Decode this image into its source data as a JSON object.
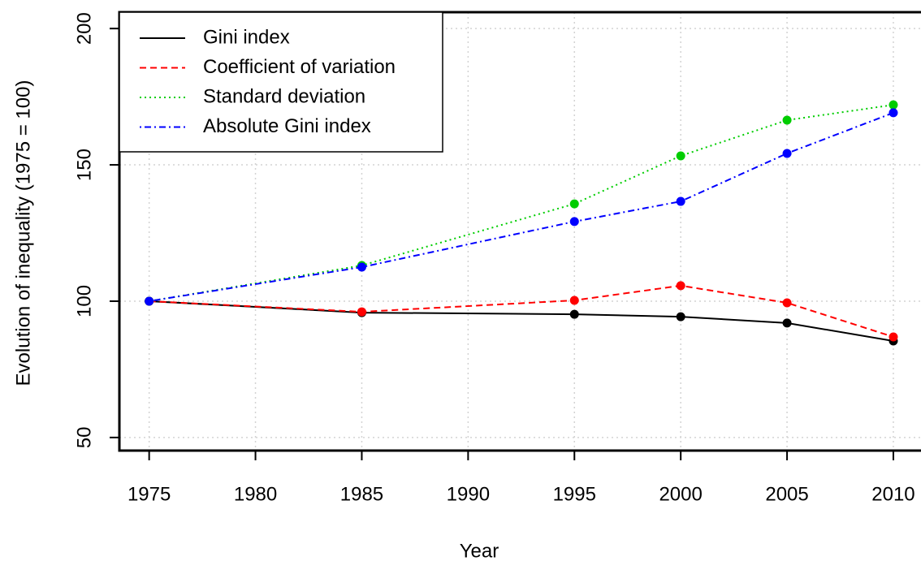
{
  "chart_data": {
    "type": "line",
    "x": [
      1975,
      1985,
      1995,
      2000,
      2005,
      2010
    ],
    "series": [
      {
        "name": "Gini index",
        "color": "#000000",
        "linestyle": "solid",
        "values": [
          100,
          95.8,
          95.2,
          94.3,
          92.0,
          85.4
        ]
      },
      {
        "name": "Coefficient of variation",
        "color": "#ff0000",
        "linestyle": "dashed",
        "values": [
          100,
          96.1,
          100.3,
          105.7,
          99.4,
          86.9
        ]
      },
      {
        "name": "Standard deviation",
        "color": "#00cd00",
        "linestyle": "dotted",
        "values": [
          100,
          113.1,
          135.7,
          153.3,
          166.4,
          172.0
        ]
      },
      {
        "name": "Absolute Gini index",
        "color": "#0000ff",
        "linestyle": "dotdash",
        "values": [
          100,
          112.5,
          129.2,
          136.6,
          154.2,
          169.1
        ]
      }
    ],
    "xlabel": "Year",
    "ylabel": "Evolution of inequality (1975 = 100)",
    "xlim": [
      1973.6,
      2011.3
    ],
    "ylim": [
      45.2,
      206.0
    ],
    "xticks": [
      1975,
      1980,
      1985,
      1990,
      1995,
      2000,
      2005,
      2010
    ],
    "yticks": [
      50,
      100,
      150,
      200
    ],
    "grid": true,
    "legend": "top-left"
  }
}
